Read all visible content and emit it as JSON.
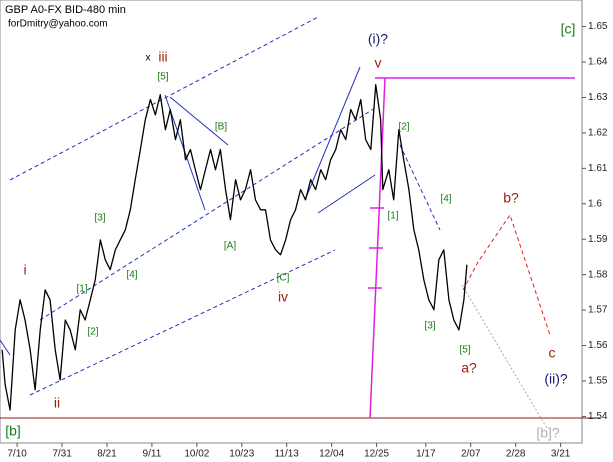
{
  "chart_data": {
    "type": "line",
    "title": "GBP A0-FX BID-480 min",
    "subtitle": "forDmitry@yahoo.com",
    "xlim": [
      -8,
      264
    ],
    "ylim": [
      1.5325,
      1.6575
    ],
    "xticks": [
      {
        "value": 0,
        "label": "7/10"
      },
      {
        "value": 21,
        "label": "7/31"
      },
      {
        "value": 42,
        "label": "8/21"
      },
      {
        "value": 63,
        "label": "9/11"
      },
      {
        "value": 84,
        "label": "10/02"
      },
      {
        "value": 105,
        "label": "10/23"
      },
      {
        "value": 126,
        "label": "11/13"
      },
      {
        "value": 147,
        "label": "12/04"
      },
      {
        "value": 168,
        "label": "12/25"
      },
      {
        "value": 191,
        "label": "1/17"
      },
      {
        "value": 212,
        "label": "2/07"
      },
      {
        "value": 233,
        "label": "2/28"
      },
      {
        "value": 254,
        "label": "3/21"
      }
    ],
    "yticks": [
      1.54,
      1.55,
      1.56,
      1.57,
      1.58,
      1.59,
      1.6,
      1.61,
      1.62,
      1.63,
      1.64,
      1.65
    ],
    "series": [
      {
        "color": "#000000",
        "x": [
          -7.0,
          -5.6,
          -3.3,
          -0.9,
          1.4,
          3.7,
          6.1,
          8.4,
          10.8,
          13.1,
          15.4,
          17.8,
          20.1,
          22.5,
          24.8,
          27.2,
          29.5,
          31.8,
          34.2,
          36.5,
          38.9,
          41.2,
          43.5,
          45.9,
          48.2,
          50.6,
          52.9,
          55.2,
          57.6,
          59.9,
          62.3,
          64.6,
          66.9,
          69.3,
          71.6,
          74.0,
          76.3,
          78.7,
          81.0,
          83.3,
          85.7,
          88.0,
          90.4,
          92.7,
          95.0,
          97.4,
          99.7,
          102.1,
          104.4,
          106.7,
          109.1,
          111.4,
          113.8,
          116.1,
          118.4,
          120.8,
          123.1,
          125.5,
          127.8,
          130.1,
          132.5,
          134.8,
          137.2,
          139.5,
          141.9,
          144.2,
          146.5,
          148.9,
          151.2,
          153.6,
          155.9,
          158.2,
          160.6,
          162.9,
          165.3,
          167.6,
          169.9,
          170.9,
          173.7,
          176.0,
          178.4,
          180.7,
          183.1,
          185.4,
          187.7,
          190.1,
          192.4,
          194.8,
          197.1,
          199.4,
          201.8,
          204.1,
          206.5,
          208.8,
          210.2
        ],
        "values": [
          1.5588,
          1.549,
          1.5418,
          1.5644,
          1.5729,
          1.5672,
          1.5588,
          1.5475,
          1.5644,
          1.5757,
          1.5729,
          1.5588,
          1.5503,
          1.5672,
          1.5644,
          1.5588,
          1.5701,
          1.5672,
          1.5729,
          1.5785,
          1.5898,
          1.5842,
          1.5814,
          1.587,
          1.5898,
          1.5927,
          1.5983,
          1.6068,
          1.6153,
          1.6237,
          1.6294,
          1.6251,
          1.6308,
          1.6209,
          1.6266,
          1.6181,
          1.6237,
          1.6124,
          1.6153,
          1.6096,
          1.604,
          1.6096,
          1.6153,
          1.6096,
          1.6153,
          1.604,
          1.5955,
          1.6068,
          1.6011,
          1.604,
          1.6096,
          1.6011,
          1.5983,
          1.5983,
          1.5898,
          1.587,
          1.5856,
          1.5898,
          1.5955,
          1.5983,
          1.604,
          1.6011,
          1.6068,
          1.604,
          1.6096,
          1.6068,
          1.6124,
          1.6153,
          1.6209,
          1.6181,
          1.6266,
          1.6237,
          1.6294,
          1.6181,
          1.6153,
          1.6336,
          1.6237,
          1.604,
          1.6096,
          1.6011,
          1.6209,
          1.6124,
          1.604,
          1.5927,
          1.587,
          1.5785,
          1.5729,
          1.5701,
          1.5842,
          1.587,
          1.5729,
          1.5672,
          1.5644,
          1.5729,
          1.5828
        ]
      }
    ],
    "annotations": [
      {
        "text": "x",
        "color": "#000000"
      },
      {
        "text": "iii",
        "color": "#a0200a"
      },
      {
        "text": "[5]",
        "color": "#1a7a1a"
      },
      {
        "text": "[3]",
        "color": "#1a7a1a"
      },
      {
        "text": "i",
        "color": "#a0200a"
      },
      {
        "text": "[1]",
        "color": "#1a7a1a"
      },
      {
        "text": "[4]",
        "color": "#1a7a1a"
      },
      {
        "text": "[2]",
        "color": "#1a7a1a"
      },
      {
        "text": "ii",
        "color": "#a0200a"
      },
      {
        "text": "[B]",
        "color": "#1a7a1a"
      },
      {
        "text": "[A]",
        "color": "#1a7a1a"
      },
      {
        "text": "[C]",
        "color": "#1a7a1a"
      },
      {
        "text": "iv",
        "color": "#a0200a"
      },
      {
        "text": "(i)?",
        "color": "#1a1a6e"
      },
      {
        "text": "v",
        "color": "#a0200a"
      },
      {
        "text": "[2]",
        "color": "#1a7a1a"
      },
      {
        "text": "[1]",
        "color": "#1a7a1a"
      },
      {
        "text": "[4]",
        "color": "#1a7a1a"
      },
      {
        "text": "[3]",
        "color": "#1a7a1a"
      },
      {
        "text": "[5]",
        "color": "#1a7a1a"
      },
      {
        "text": "a?",
        "color": "#a0200a"
      },
      {
        "text": "b?",
        "color": "#a0200a"
      },
      {
        "text": "c",
        "color": "#a0200a"
      },
      {
        "text": "(ii)?",
        "color": "#1a1a6e"
      },
      {
        "text": "[c]",
        "color": "#1a7a1a"
      },
      {
        "text": "[b]",
        "color": "#1a7a1a"
      },
      {
        "text": "[b]?",
        "color": "#b0b0b0"
      }
    ]
  }
}
